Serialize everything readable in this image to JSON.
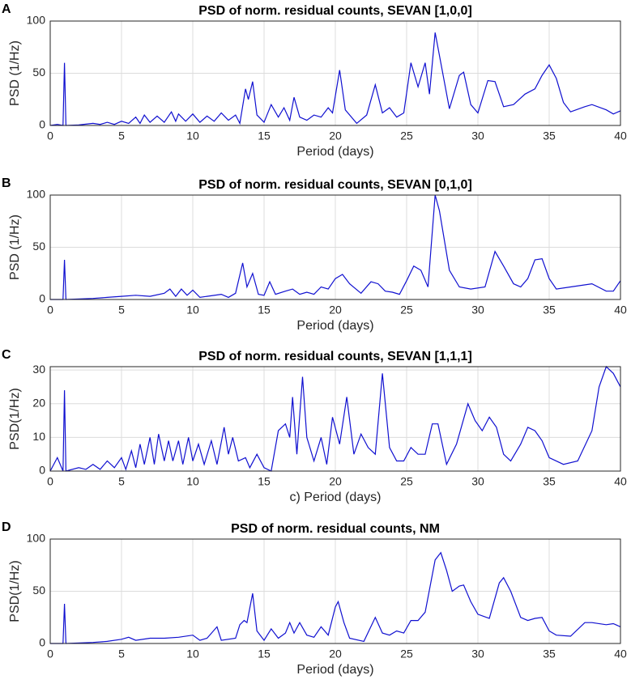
{
  "chart_data": [
    {
      "type": "line",
      "panel": "A",
      "title": "PSD of norm. residual counts, SEVAN [1,0,0]",
      "xlabel": "Period (days)",
      "ylabel": "PSD (1/Hz)",
      "xlim": [
        0,
        40
      ],
      "ylim": [
        0,
        100
      ],
      "xticks": [
        0,
        5,
        10,
        15,
        20,
        25,
        30,
        35,
        40
      ],
      "yticks": [
        0,
        50,
        100
      ],
      "grid": true,
      "color": "#1010d0",
      "x": [
        0,
        0.5,
        0.9,
        1,
        1.1,
        2,
        3,
        3.5,
        4,
        4.5,
        5,
        5.5,
        6,
        6.3,
        6.6,
        7,
        7.5,
        8,
        8.5,
        8.8,
        9,
        9.5,
        10,
        10.5,
        11,
        11.5,
        12,
        12.5,
        13,
        13.3,
        13.7,
        13.9,
        14.2,
        14.5,
        15,
        15.5,
        16,
        16.4,
        16.8,
        17.1,
        17.5,
        18,
        18.5,
        19,
        19.5,
        19.8,
        20.3,
        20.7,
        21.5,
        22.2,
        22.8,
        23.3,
        23.8,
        24.3,
        24.8,
        25.3,
        25.8,
        26.3,
        26.6,
        27,
        27.4,
        28,
        28.7,
        29,
        29.5,
        30,
        30.7,
        31.2,
        31.8,
        32.5,
        33.3,
        34,
        34.5,
        35,
        35.5,
        36,
        36.5,
        37.5,
        38,
        39,
        39.5,
        40
      ],
      "values": [
        0,
        1,
        0,
        60,
        0,
        0.5,
        2,
        1,
        3,
        1,
        4,
        2,
        8,
        2,
        10,
        3,
        9,
        3,
        13,
        4,
        11,
        4,
        11,
        3,
        9,
        4,
        12,
        5,
        10,
        2,
        35,
        25,
        42,
        10,
        3,
        20,
        8,
        17,
        5,
        27,
        8,
        5,
        10,
        8,
        17,
        12,
        53,
        15,
        2,
        10,
        39,
        12,
        17,
        8,
        12,
        60,
        37,
        60,
        30,
        89,
        60,
        16,
        48,
        51,
        20,
        12,
        43,
        42,
        18,
        20,
        30,
        35,
        48,
        58,
        45,
        22,
        13,
        18,
        20,
        15,
        11,
        14
      ]
    },
    {
      "type": "line",
      "panel": "B",
      "title": "PSD of norm. residual counts, SEVAN [0,1,0]",
      "xlabel": "Period (days)",
      "ylabel": "PSD (1/Hz)",
      "xlim": [
        0,
        40
      ],
      "ylim": [
        0,
        100
      ],
      "xticks": [
        0,
        5,
        10,
        15,
        20,
        25,
        30,
        35,
        40
      ],
      "yticks": [
        0,
        50,
        100
      ],
      "grid": true,
      "color": "#1010d0",
      "x": [
        0,
        0.9,
        1,
        1.1,
        3,
        4,
        5,
        6,
        7,
        8,
        8.4,
        8.8,
        9.2,
        9.6,
        10,
        10.5,
        11,
        12,
        12.5,
        13,
        13.5,
        13.8,
        14.2,
        14.6,
        15,
        15.4,
        15.8,
        16.5,
        17,
        17.5,
        18,
        18.5,
        19,
        19.5,
        20,
        20.5,
        21,
        21.8,
        22.5,
        23,
        23.5,
        24,
        24.5,
        25,
        25.5,
        26,
        26.5,
        27,
        27.3,
        28,
        28.7,
        29.5,
        30.5,
        31.2,
        31.8,
        32.5,
        33,
        33.5,
        34,
        34.5,
        35,
        35.5,
        36.5,
        38,
        39,
        39.5,
        40
      ],
      "values": [
        0,
        0,
        38,
        0,
        1,
        2,
        3,
        4,
        3,
        6,
        10,
        3,
        10,
        4,
        9,
        2,
        3,
        5,
        2,
        6,
        35,
        12,
        25,
        5,
        4,
        17,
        5,
        8,
        10,
        5,
        7,
        5,
        12,
        10,
        20,
        24,
        15,
        6,
        17,
        15,
        8,
        7,
        5,
        18,
        32,
        28,
        12,
        100,
        85,
        28,
        12,
        10,
        12,
        46,
        32,
        15,
        12,
        20,
        38,
        39,
        20,
        10,
        12,
        15,
        8,
        8,
        18
      ]
    },
    {
      "type": "line",
      "panel": "C",
      "title": "PSD of norm. residual counts, SEVAN [1,1,1]",
      "xlabel": "c) Period (days)",
      "ylabel": "PSD(1/Hz)",
      "xlim": [
        0,
        40
      ],
      "ylim": [
        0,
        31
      ],
      "xticks": [
        0,
        5,
        10,
        15,
        20,
        25,
        30,
        35,
        40
      ],
      "yticks": [
        0,
        10,
        20,
        30
      ],
      "grid": true,
      "color": "#1010d0",
      "x": [
        0,
        0.5,
        0.9,
        1,
        1.1,
        2,
        2.5,
        3,
        3.5,
        4,
        4.5,
        5,
        5.3,
        5.7,
        6,
        6.3,
        6.6,
        7,
        7.3,
        7.6,
        8,
        8.3,
        8.6,
        9,
        9.3,
        9.7,
        10,
        10.4,
        10.8,
        11.3,
        11.7,
        12.2,
        12.5,
        12.8,
        13.2,
        13.7,
        14,
        14.5,
        15,
        15.5,
        16,
        16.5,
        16.8,
        17,
        17.3,
        17.7,
        18,
        18.5,
        19,
        19.4,
        19.8,
        20.3,
        20.8,
        21.3,
        21.8,
        22.3,
        22.8,
        23.3,
        23.8,
        24.3,
        24.8,
        25.3,
        25.8,
        26.3,
        26.8,
        27.2,
        27.8,
        28.5,
        29.3,
        29.8,
        30.3,
        30.8,
        31.3,
        31.8,
        32.3,
        33,
        33.5,
        34,
        34.5,
        35,
        36,
        37,
        38,
        38.5,
        39,
        39.5,
        40
      ],
      "values": [
        0,
        4,
        0,
        24,
        0,
        1,
        0.5,
        2,
        0.5,
        3,
        1,
        4,
        0.5,
        6,
        1,
        8,
        2,
        10,
        2,
        11,
        3,
        9,
        3,
        9,
        2,
        10,
        3,
        8,
        2,
        9,
        2,
        13,
        5,
        10,
        3,
        4,
        1,
        5,
        1,
        0,
        12,
        14,
        10,
        22,
        5,
        28,
        10,
        3,
        10,
        2,
        16,
        8,
        22,
        5,
        11,
        7,
        5,
        29,
        7,
        3,
        3,
        7,
        5,
        5,
        14,
        14,
        2,
        8,
        20,
        15,
        12,
        16,
        13,
        5,
        3,
        8,
        13,
        12,
        9,
        4,
        2,
        3,
        12,
        25,
        31,
        29,
        25
      ]
    },
    {
      "type": "line",
      "panel": "D",
      "title": "PSD of norm. residual counts, NM",
      "xlabel": "Period (days)",
      "ylabel": "PSD(1/Hz)",
      "xlim": [
        0,
        40
      ],
      "ylim": [
        0,
        100
      ],
      "xticks": [
        0,
        5,
        10,
        15,
        20,
        25,
        30,
        35,
        40
      ],
      "yticks": [
        0,
        50,
        100
      ],
      "grid": true,
      "color": "#1010d0",
      "x": [
        0,
        0.9,
        1,
        1.1,
        3,
        4,
        5,
        5.5,
        6,
        7,
        8,
        9,
        10,
        10.5,
        11,
        11.7,
        12,
        13,
        13.3,
        13.6,
        13.8,
        14.2,
        14.5,
        15,
        15.5,
        16,
        16.5,
        16.8,
        17.1,
        17.5,
        18,
        18.5,
        19,
        19.5,
        20,
        20.2,
        20.6,
        21,
        22,
        22.8,
        23.3,
        23.8,
        24.3,
        24.8,
        25.3,
        25.8,
        26.3,
        27,
        27.4,
        27.8,
        28.2,
        28.7,
        29,
        29.5,
        30,
        30.8,
        31.5,
        31.8,
        32.3,
        33,
        33.5,
        34,
        34.5,
        35,
        35.5,
        36.5,
        37.5,
        38,
        39,
        39.5,
        40
      ],
      "values": [
        0,
        0,
        38,
        0,
        1,
        2,
        4,
        6,
        3,
        5,
        5,
        6,
        8,
        3,
        5,
        16,
        3,
        5,
        18,
        22,
        20,
        48,
        12,
        3,
        14,
        5,
        10,
        20,
        10,
        20,
        8,
        6,
        16,
        8,
        35,
        40,
        20,
        5,
        2,
        25,
        10,
        8,
        12,
        10,
        22,
        22,
        30,
        80,
        87,
        70,
        50,
        55,
        56,
        40,
        28,
        24,
        58,
        63,
        50,
        25,
        22,
        24,
        25,
        12,
        8,
        7,
        20,
        20,
        18,
        19,
        16
      ]
    }
  ]
}
